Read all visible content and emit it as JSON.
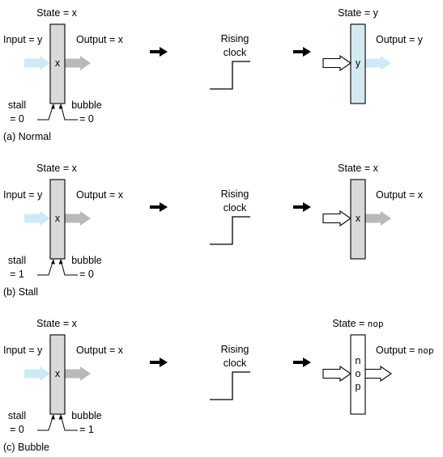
{
  "colors": {
    "register_fill": "#d9d9d9",
    "updated_register_fill": "#d4eaf2",
    "input_arrow": "#cdebf5",
    "output_arrow": "#b9b9b9",
    "step_arrow": "#000000",
    "outline": "#000000"
  },
  "clock_label": [
    "Rising",
    "clock"
  ],
  "panels": [
    {
      "caption": "(a) Normal",
      "before": {
        "state": "State = x",
        "input": "Input = y",
        "output": "Output = x",
        "content": "x",
        "stall": [
          "stall",
          "= 0"
        ],
        "bubble": [
          "bubble",
          "= 0"
        ]
      },
      "after": {
        "state_prefix": "State = ",
        "state_value": "y",
        "output_prefix": "Output = ",
        "output_value": "y",
        "content": [
          "y"
        ],
        "register_fill": "updated",
        "output_arrow": "blue"
      }
    },
    {
      "caption": "(b) Stall",
      "before": {
        "state": "State = x",
        "input": "Input = y",
        "output": "Output = x",
        "content": "x",
        "stall": [
          "stall",
          "= 1"
        ],
        "bubble": [
          "bubble",
          "= 0"
        ]
      },
      "after": {
        "state_prefix": "State = ",
        "state_value": "x",
        "output_prefix": "Output = ",
        "output_value": "x",
        "content": [
          "x"
        ],
        "register_fill": "gray",
        "output_arrow": "gray"
      }
    },
    {
      "caption": "(c) Bubble",
      "before": {
        "state": "State = x",
        "input": "Input = y",
        "output": "Output = x",
        "content": "x",
        "stall": [
          "stall",
          "= 0"
        ],
        "bubble": [
          "bubble",
          "= 1"
        ]
      },
      "after": {
        "state_prefix": "State = ",
        "state_value": "nop",
        "output_prefix": "Output = ",
        "output_value": "nop",
        "content": [
          "n",
          "o",
          "p"
        ],
        "register_fill": "white",
        "output_arrow": "hollow"
      }
    }
  ]
}
